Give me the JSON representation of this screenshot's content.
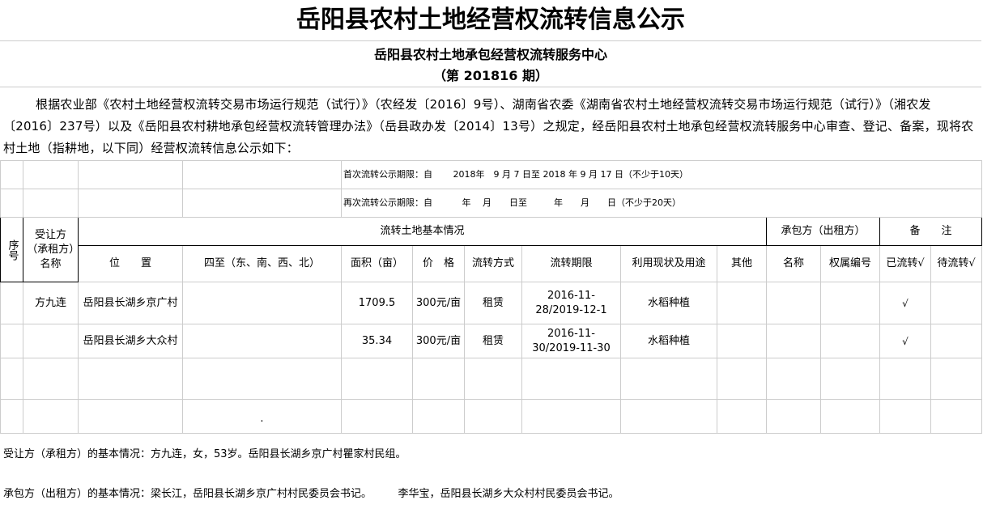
{
  "title": "岳阳县农村土地经营权流转信息公示",
  "subtitle": "岳阳县农村土地承包经营权流转服务中心",
  "issue": "（第 201816 期）",
  "paragraph": "根据农业部《农村土地经营权流转交易市场运行规范（试行）》（农经发〔2016〕9号）、湖南省农委《湖南省农村土地经营权流转交易市场运行规范（试行）》（湘农发〔2016〕237号）以及《岳阳县农村耕地承包经营权流转管理办法》（岳县政办发〔2014〕13号）之规定，经岳阳县农村土地承包经营权流转服务中心审查、登记、备案，现将农村土地（指耕地，以下同）经营权流转信息公示如下：",
  "period_first": "首次流转公示期限：自　　 2018年　9 月 7 日至 2018 年 9 月 17 日（不少于10天）",
  "period_second": "再次流转公示期限：自　　　 年　 月　　日至　　　年　　月　　日（不少于20天）",
  "headers": {
    "seq": "序号",
    "transferee": "受让方（承租方）名称",
    "basic": "流转土地基本情况",
    "lessor": "承包方（出租方）",
    "remark": "备　　注",
    "location": "位　　置",
    "bounds": "四至（东、南、西、北）",
    "area": "面积（亩）",
    "price": "价　格",
    "mode": "流转方式",
    "term": "流转期限",
    "usage": "利用现状及用途",
    "other": "其他",
    "name": "名称",
    "owner_no": "权属编号",
    "done": "已流转√",
    "pending": "待流转√"
  },
  "rows": [
    {
      "seq": "",
      "transferee": "方九连",
      "location": "岳阳县长湖乡京广村",
      "bounds": "",
      "area": "1709.5",
      "price": "300元/亩",
      "mode": "租赁",
      "term": "2016-11-28/2019-12-1",
      "usage": "水稻种植",
      "other": "",
      "name": "",
      "owner_no": "",
      "done": "√",
      "pending": ""
    },
    {
      "seq": "",
      "transferee": "",
      "location": "岳阳县长湖乡大众村",
      "bounds": "",
      "area": "35.34",
      "price": "300元/亩",
      "mode": "租赁",
      "term": "2016-11-30/2019-11-30",
      "usage": "水稻种植",
      "other": "",
      "name": "",
      "owner_no": "",
      "done": "√",
      "pending": ""
    }
  ],
  "dot": ".",
  "transferee_info": "受让方（承租方）的基本情况：方九连，女，53岁。岳阳县长湖乡京广村瞿家村民组。",
  "lessor_info": "承包方（出租方）的基本情况：梁长江，岳阳县长湖乡京广村村民委员会书记。　　　李华宝，岳阳县长湖乡大众村村民委员会书记。"
}
